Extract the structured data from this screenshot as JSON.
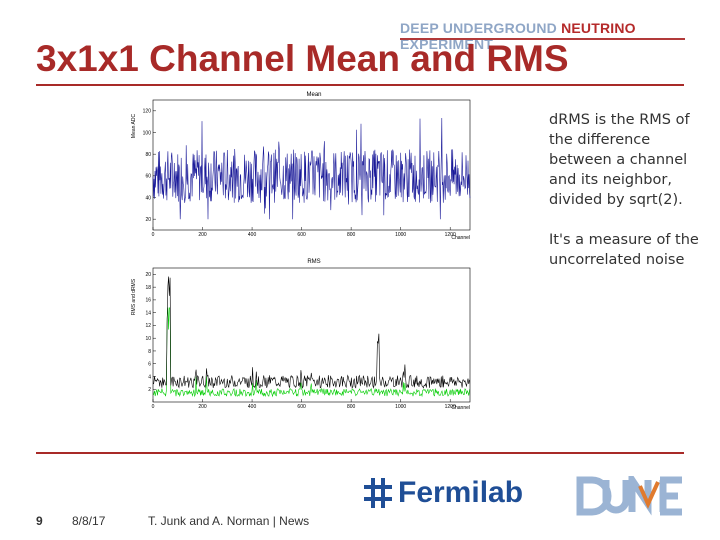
{
  "header": {
    "brand_part1": "DEEP UNDERGROUND ",
    "brand_part2": "NEUTRINO",
    "brand_part3": " EXPERIMENT"
  },
  "slide": {
    "title": "3x1x1 Channel Mean and RMS"
  },
  "notes": {
    "paragraph1": "dRMS is the RMS of the difference between a channel and its neighbor, divided by sqrt(2).",
    "paragraph2": "It's a measure of the uncorrelated noise"
  },
  "footer": {
    "page_number": "9",
    "date": "8/8/17",
    "authors": "T. Junk and A. Norman | News",
    "fermilab": "Fermilab",
    "dune": "DUNE"
  },
  "colors": {
    "accent": "#a82a28",
    "mean_series": "#1a1a99",
    "rms_series": "#000000",
    "drms_series": "#00cc00",
    "fermilab": "#1f4e96"
  },
  "chart_data": [
    {
      "type": "line",
      "title": "Mean",
      "xlabel": "Channel",
      "ylabel": "Mean ADC",
      "xlim": [
        0,
        1280
      ],
      "ylim": [
        10,
        130
      ],
      "xticks": [
        "0",
        "200",
        "400",
        "600",
        "800",
        "1000",
        "1200"
      ],
      "yticks": [
        "20",
        "40",
        "60",
        "80",
        "100",
        "120"
      ],
      "series": [
        {
          "name": "",
          "color": "#1a1a99",
          "description": "per-channel mean ADC, noisy around ~60, range ~20-120"
        }
      ]
    },
    {
      "type": "line",
      "title": "RMS",
      "xlabel": "Channel",
      "ylabel": "RMS and dRMS",
      "xlim": [
        0,
        1280
      ],
      "ylim": [
        0,
        21
      ],
      "xticks": [
        "0",
        "200",
        "400",
        "600",
        "800",
        "1000",
        "1200"
      ],
      "yticks": [
        "2",
        "4",
        "6",
        "8",
        "10",
        "12",
        "14",
        "16",
        "18",
        "20"
      ],
      "series": [
        {
          "name": "",
          "color": "#000000",
          "description": "RMS, mostly ~3-4 with spikes near channels 60 and 910"
        },
        {
          "name": "",
          "color": "#00cc00",
          "description": "dRMS, mostly ~1-2 with spike near channel 60"
        }
      ]
    }
  ]
}
